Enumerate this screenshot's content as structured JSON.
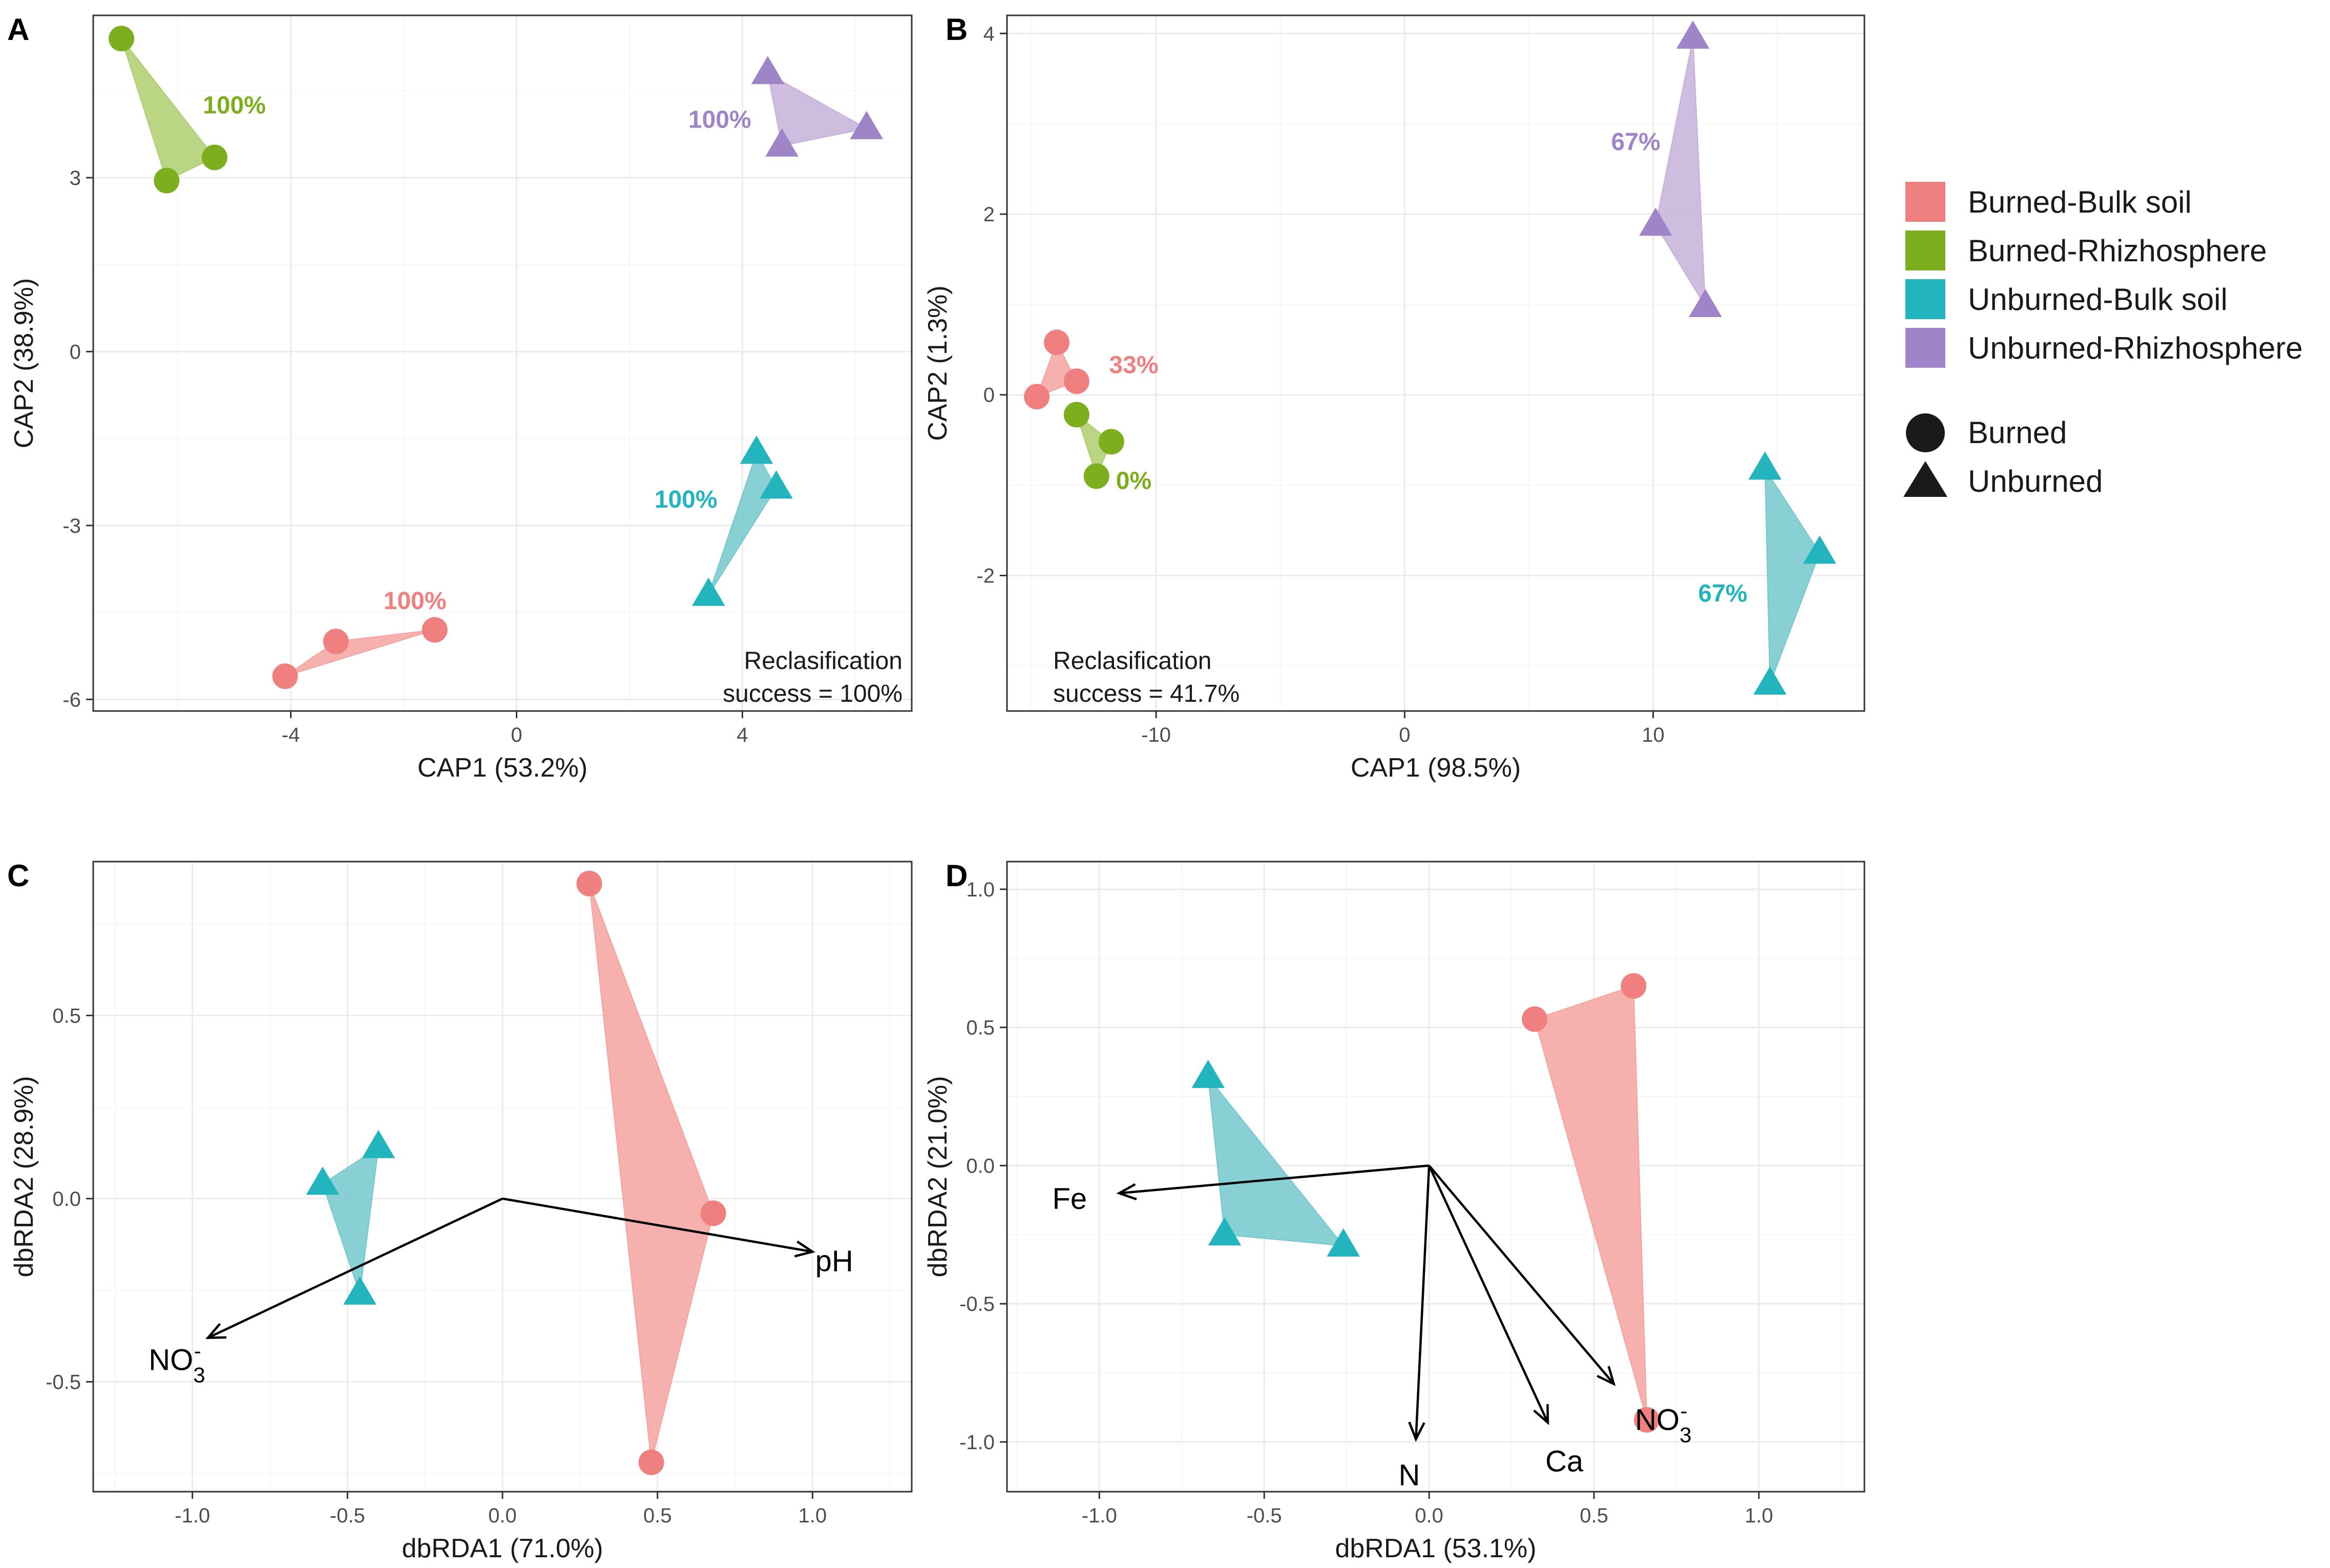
{
  "legend": {
    "groups": [
      {
        "name": "Burned-Bulk soil",
        "color": "#F08080",
        "fill": "#F4A3A0"
      },
      {
        "name": "Burned-Rhizhosphere",
        "color": "#7CAE1E",
        "fill": "#AECF6E"
      },
      {
        "name": "Unburned-Bulk soil",
        "color": "#22B5BE",
        "fill": "#74C8CD"
      },
      {
        "name": "Unburned-Rhizhosphere",
        "color": "#9F84C8",
        "fill": "#C7B1DB"
      }
    ],
    "shapes": [
      {
        "name": "Burned",
        "shape": "circle"
      },
      {
        "name": "Unburned",
        "shape": "triangle"
      }
    ]
  },
  "chart_data": [
    {
      "panel": "A",
      "type": "scatter",
      "xlabel": "CAP1 (53.2%)",
      "ylabel": "CAP2 (38.9%)",
      "xlim": [
        -7.5,
        7
      ],
      "ylim": [
        -6.2,
        5.8
      ],
      "xticks": [
        -4,
        0,
        4
      ],
      "yticks": [
        -6,
        -3,
        0,
        3
      ],
      "xticklabels": [
        "-4",
        "0",
        "4"
      ],
      "yticklabels": [
        "-6",
        "-3",
        "0",
        "3"
      ],
      "groups": [
        {
          "group": 0,
          "shape": "circle",
          "points": [
            [
              -4.1,
              -5.6
            ],
            [
              -3.2,
              -5.0
            ],
            [
              -1.45,
              -4.8
            ]
          ],
          "label": "100%",
          "label_pos": [
            -1.8,
            -4.3
          ]
        },
        {
          "group": 1,
          "shape": "circle",
          "points": [
            [
              -7.0,
              5.4
            ],
            [
              -6.2,
              2.95
            ],
            [
              -5.35,
              3.35
            ]
          ],
          "label": "100%",
          "label_pos": [
            -5.0,
            4.25
          ]
        },
        {
          "group": 2,
          "shape": "triangle",
          "points": [
            [
              4.25,
              -1.75
            ],
            [
              4.6,
              -2.35
            ],
            [
              3.4,
              -4.2
            ]
          ],
          "label": "100%",
          "label_pos": [
            3.0,
            -2.55
          ]
        },
        {
          "group": 3,
          "shape": "triangle",
          "points": [
            [
              4.45,
              4.8
            ],
            [
              6.2,
              3.85
            ],
            [
              4.7,
              3.55
            ]
          ],
          "label": "100%",
          "label_pos": [
            3.6,
            4.0
          ]
        }
      ],
      "note": [
        "Reclasification",
        "success = 100%"
      ],
      "note_anchor": "bottom-right"
    },
    {
      "panel": "B",
      "type": "scatter",
      "xlabel": "CAP1 (98.5%)",
      "ylabel": "CAP2 (1.3%)",
      "xlim": [
        -16.0,
        18.5
      ],
      "ylim": [
        -3.5,
        4.2
      ],
      "xticks": [
        -10,
        0,
        10
      ],
      "yticks": [
        -2,
        0,
        2,
        4
      ],
      "xticklabels": [
        "-10",
        "0",
        "10"
      ],
      "yticklabels": [
        "-2",
        "0",
        "2",
        "4"
      ],
      "groups": [
        {
          "group": 0,
          "shape": "circle",
          "points": [
            [
              -14.8,
              -0.02
            ],
            [
              -14.0,
              0.58
            ],
            [
              -13.2,
              0.15
            ]
          ],
          "label": "33%",
          "label_pos": [
            -10.9,
            0.33
          ]
        },
        {
          "group": 1,
          "shape": "circle",
          "points": [
            [
              -13.2,
              -0.22
            ],
            [
              -12.4,
              -0.9
            ],
            [
              -11.8,
              -0.52
            ]
          ],
          "label": "0%",
          "label_pos": [
            -10.9,
            -0.95
          ]
        },
        {
          "group": 2,
          "shape": "triangle",
          "points": [
            [
              14.5,
              -0.82
            ],
            [
              16.7,
              -1.75
            ],
            [
              14.7,
              -3.2
            ]
          ],
          "label": "67%",
          "label_pos": [
            12.8,
            -2.2
          ]
        },
        {
          "group": 3,
          "shape": "triangle",
          "points": [
            [
              11.6,
              3.95
            ],
            [
              10.1,
              1.88
            ],
            [
              12.1,
              0.98
            ]
          ],
          "label": "67%",
          "label_pos": [
            9.3,
            2.8
          ]
        }
      ],
      "note": [
        "Reclasification",
        "success = 41.7%"
      ],
      "note_anchor": "bottom-left"
    },
    {
      "panel": "C",
      "type": "scatter",
      "xlabel": "dbRDA1 (71.0%)",
      "ylabel": "dbRDA2 (28.9%)",
      "xlim": [
        -1.32,
        1.32
      ],
      "ylim": [
        -0.8,
        0.92
      ],
      "xticks": [
        -1.0,
        -0.5,
        0.0,
        0.5,
        1.0
      ],
      "yticks": [
        -0.5,
        0.0,
        0.5
      ],
      "xticklabels": [
        "-1.0",
        "-0.5",
        "0.0",
        "0.5",
        "1.0"
      ],
      "yticklabels": [
        "-0.5",
        "0.0",
        "0.5"
      ],
      "groups": [
        {
          "group": 0,
          "shape": "circle",
          "points": [
            [
              0.28,
              0.86
            ],
            [
              0.68,
              -0.04
            ],
            [
              0.48,
              -0.72
            ]
          ]
        },
        {
          "group": 2,
          "shape": "triangle",
          "points": [
            [
              -0.58,
              0.04
            ],
            [
              -0.4,
              0.14
            ],
            [
              -0.46,
              -0.26
            ]
          ]
        }
      ],
      "arrows": [
        {
          "to": [
            1.0,
            -0.145
          ],
          "label": "pH",
          "label_pos": [
            1.07,
            -0.17
          ]
        },
        {
          "to": [
            -0.95,
            -0.38
          ],
          "label": "NO3-",
          "label_pos": [
            -1.05,
            -0.44
          ]
        }
      ]
    },
    {
      "panel": "D",
      "type": "scatter",
      "xlabel": "dbRDA1 (53.1%)",
      "ylabel": "dbRDA2 (21.0%)",
      "xlim": [
        -1.28,
        1.32
      ],
      "ylim": [
        -1.18,
        1.1
      ],
      "xticks": [
        -1.0,
        -0.5,
        0.0,
        0.5,
        1.0
      ],
      "yticks": [
        -1.0,
        -0.5,
        0.0,
        0.5,
        1.0
      ],
      "xticklabels": [
        "-1.0",
        "-0.5",
        "0.0",
        "0.5",
        "1.0"
      ],
      "yticklabels": [
        "-1.0",
        "-0.5",
        "0.0",
        "0.5",
        "1.0"
      ],
      "groups": [
        {
          "group": 0,
          "shape": "circle",
          "points": [
            [
              0.32,
              0.53
            ],
            [
              0.62,
              0.65
            ],
            [
              0.66,
              -0.92
            ]
          ]
        },
        {
          "group": 2,
          "shape": "triangle",
          "points": [
            [
              -0.67,
              0.32
            ],
            [
              -0.62,
              -0.25
            ],
            [
              -0.26,
              -0.29
            ]
          ]
        }
      ],
      "arrows": [
        {
          "to": [
            -0.94,
            -0.1
          ],
          "label": "Fe",
          "label_pos": [
            -1.09,
            -0.12
          ]
        },
        {
          "to": [
            -0.04,
            -0.99
          ],
          "label": "N",
          "label_pos": [
            -0.06,
            -1.12
          ]
        },
        {
          "to": [
            0.36,
            -0.93
          ],
          "label": "Ca",
          "label_pos": [
            0.41,
            -1.07
          ]
        },
        {
          "to": [
            0.56,
            -0.79
          ],
          "label": "NO3-",
          "label_pos": [
            0.71,
            -0.92
          ]
        }
      ]
    }
  ]
}
